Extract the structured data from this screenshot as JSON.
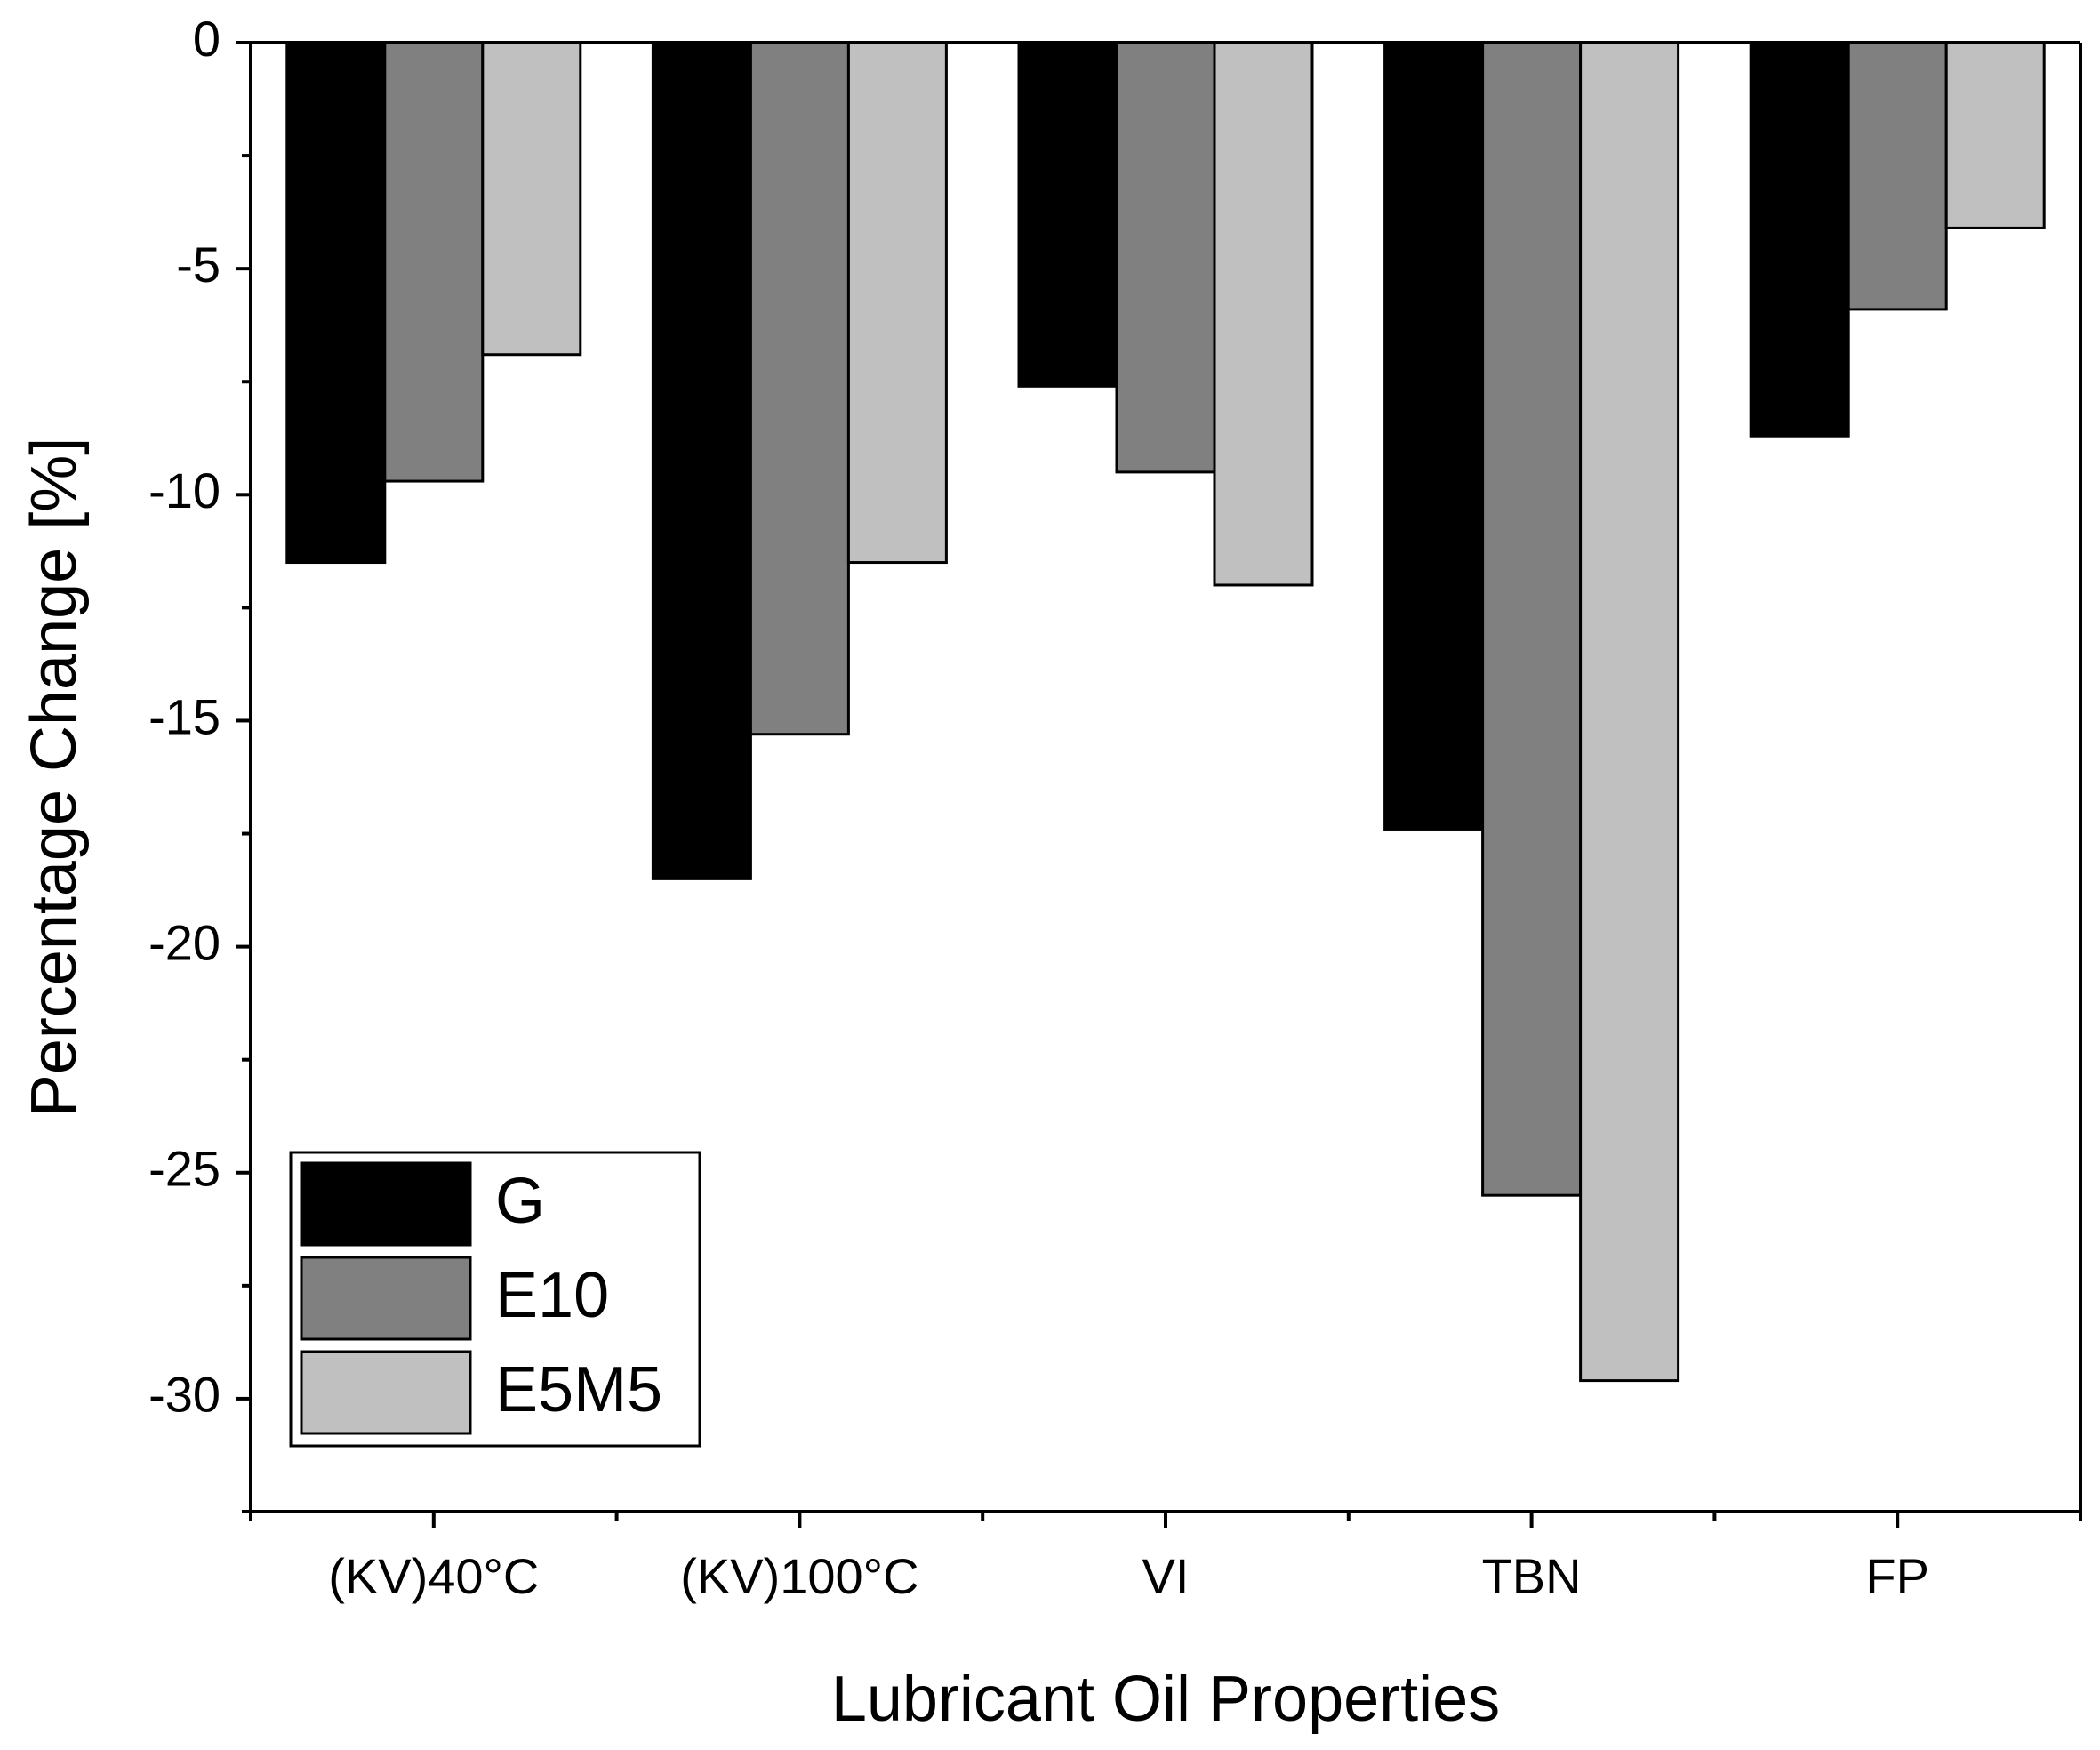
{
  "chart_data": {
    "type": "bar",
    "title": "",
    "xlabel": "Lubricant Oil Properties",
    "ylabel": "Percentage Change [%]",
    "ylim": [
      -32.5,
      0
    ],
    "yticks": [
      0,
      -5,
      -10,
      -15,
      -20,
      -25,
      -30
    ],
    "ytick_labels": [
      "0",
      "-5",
      "-10",
      "-15",
      "-20",
      "-25",
      "-30"
    ],
    "categories": [
      "(KV)40°C",
      "(KV)100°C",
      "VI",
      "TBN",
      "FP"
    ],
    "series": [
      {
        "name": "G",
        "color": "#000000",
        "values": [
          -11.5,
          -18.5,
          -7.6,
          -17.4,
          -8.7
        ]
      },
      {
        "name": "E10",
        "color": "#808080",
        "values": [
          -9.7,
          -15.3,
          -9.5,
          -25.5,
          -5.9
        ]
      },
      {
        "name": "E5M5",
        "color": "#c0c0c0",
        "values": [
          -6.9,
          -11.5,
          -12.0,
          -29.6,
          -4.1
        ]
      }
    ],
    "legend_position": "bottom-left",
    "grid": false
  }
}
